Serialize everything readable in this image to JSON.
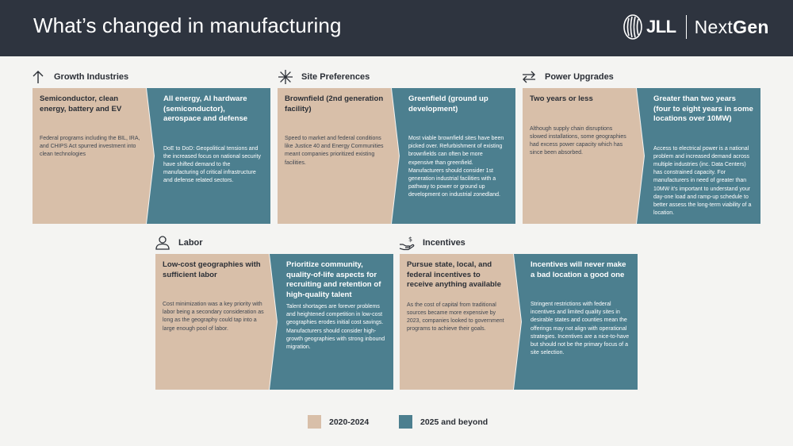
{
  "header": {
    "title": "What’s changed in manufacturing",
    "logo_jll": "JLL",
    "logo_next": "Next",
    "logo_gen": "Gen"
  },
  "colors": {
    "tan": "#d8bfa9",
    "teal": "#4c7f8f",
    "header_bg": "#2e343f"
  },
  "sections": {
    "growth": {
      "label": "Growth Industries",
      "icon": "arrow-up-icon",
      "before": {
        "title": "Semiconductor, clean energy, battery and EV",
        "body": "Federal programs including the BIL, IRA, and CHIPS Act spurred investment into clean technologies"
      },
      "after": {
        "title": "All energy, AI hardware (semiconductor), aerospace and defense",
        "body": "DoE to DoD: Geopolitical tensions and the increased focus on national security have shifted demand to the manufacturing of critical infrastructure and defense related sectors."
      }
    },
    "site": {
      "label": "Site Preferences",
      "icon": "asterisk-icon",
      "before": {
        "title": "Brownfield (2nd generation facility)",
        "body": "Speed to market and federal conditions like Justice 40 and Energy Communities meant companies prioritized existing facilities."
      },
      "after": {
        "title": "Greenfield (ground up development)",
        "body": "Most viable brownfield sites have been picked over. Refurbishment of existing brownfields can often be more expensive than greenfield. Manufacturers should consider 1st generation industrial facilities with a pathway to power or ground up development on industrial zonedland."
      }
    },
    "power": {
      "label": "Power Upgrades",
      "icon": "swap-arrows-icon",
      "before": {
        "title": "Two years or less",
        "body": "Although supply chain disruptions slowed installations, some geographies had excess power capacity which has since been absorbed."
      },
      "after": {
        "title": "Greater than two years (four to eight years in some locations over 10MW)",
        "body": "Access to electrical power is a national problem and increased demand across multiple industries (inc. Data Centers) has constrained capacity. For manufacturers in need of greater than 10MW it’s important to understand your day-one load and ramp-up schedule to better assess the long-term viability of a location."
      }
    },
    "labor": {
      "label": "Labor",
      "icon": "person-icon",
      "before": {
        "title": "Low-cost geographies with sufficient labor",
        "body": "Cost minimization was a key priority with labor being a secondary consideration as long as the geography could tap into a large enough pool of labor."
      },
      "after": {
        "title": "Prioritize community, quality-of-life aspects for recruiting and retention of high-quality talent",
        "body": "Talent shortages are forever problems and heightened competition in low-cost geographies erodes initial cost savings. Manufacturers should consider high-growth geographies with strong inbound migration."
      }
    },
    "incentives": {
      "label": "Incentives",
      "icon": "hand-dollar-icon",
      "before": {
        "title": "Pursue state, local, and federal incentives to receive anything available",
        "body": "As the cost of capital from traditional sources became more expensive by 2023, companies looked to government programs to achieve their goals."
      },
      "after": {
        "title": "Incentives will never make a bad location a good one",
        "body": "Stringent restrictions with federal incentives and limited quality sites in desirable states and counties mean the offerings may not align with operational strategies. Incentives are a nice-to-have but should not be the primary focus of a site selection."
      }
    }
  },
  "legend": {
    "before": "2020-2024",
    "after": "2025 and beyond"
  }
}
